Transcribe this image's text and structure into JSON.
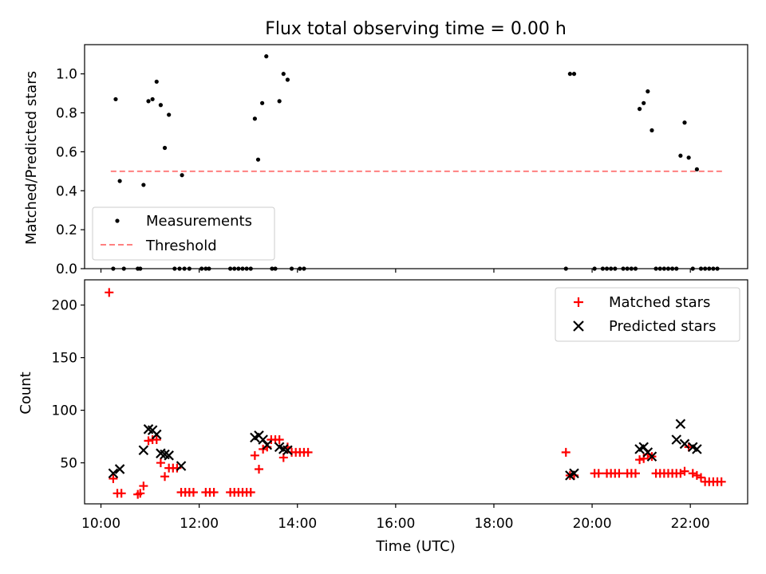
{
  "chart_data": [
    {
      "type": "scatter",
      "title": "Flux total observing time = 0.00 h",
      "xlabel": "",
      "ylabel": "Matched/Predicted stars",
      "xlim": [
        "09:40",
        "23:10"
      ],
      "ylim": [
        0,
        1.15
      ],
      "yticks": [
        "0.0",
        "0.2",
        "0.4",
        "0.6",
        "0.8",
        "1.0"
      ],
      "legend": {
        "position": "lower-left"
      },
      "series": [
        {
          "name": "Measurements",
          "marker": "dot",
          "color": "#000000",
          "points": [
            [
              "10:15",
              0.0
            ],
            [
              "10:18",
              0.87
            ],
            [
              "10:23",
              0.45
            ],
            [
              "10:28",
              0.0
            ],
            [
              "10:45",
              0.0
            ],
            [
              "10:48",
              0.0
            ],
            [
              "10:52",
              0.43
            ],
            [
              "10:58",
              0.86
            ],
            [
              "11:03",
              0.87
            ],
            [
              "11:08",
              0.96
            ],
            [
              "11:13",
              0.84
            ],
            [
              "11:18",
              0.62
            ],
            [
              "11:23",
              0.79
            ],
            [
              "11:30",
              0.0
            ],
            [
              "11:36",
              0.0
            ],
            [
              "11:39",
              0.48
            ],
            [
              "11:42",
              0.0
            ],
            [
              "11:48",
              0.0
            ],
            [
              "12:03",
              0.0
            ],
            [
              "12:08",
              0.0
            ],
            [
              "12:12",
              0.0
            ],
            [
              "12:38",
              0.0
            ],
            [
              "12:43",
              0.0
            ],
            [
              "12:48",
              0.0
            ],
            [
              "12:53",
              0.0
            ],
            [
              "12:58",
              0.0
            ],
            [
              "13:03",
              0.0
            ],
            [
              "13:08",
              0.77
            ],
            [
              "13:12",
              0.56
            ],
            [
              "13:17",
              0.85
            ],
            [
              "13:22",
              1.09
            ],
            [
              "13:29",
              0.0
            ],
            [
              "13:33",
              0.0
            ],
            [
              "13:38",
              0.86
            ],
            [
              "13:43",
              1.0
            ],
            [
              "13:48",
              0.97
            ],
            [
              "13:53",
              0.0
            ],
            [
              "14:03",
              0.0
            ],
            [
              "14:08",
              0.0
            ],
            [
              "19:28",
              0.0
            ],
            [
              "19:33",
              1.0
            ],
            [
              "19:38",
              1.0
            ],
            [
              "20:03",
              0.0
            ],
            [
              "20:13",
              0.0
            ],
            [
              "20:18",
              0.0
            ],
            [
              "20:23",
              0.0
            ],
            [
              "20:28",
              0.0
            ],
            [
              "20:38",
              0.0
            ],
            [
              "20:43",
              0.0
            ],
            [
              "20:48",
              0.0
            ],
            [
              "20:53",
              0.0
            ],
            [
              "20:58",
              0.82
            ],
            [
              "21:03",
              0.85
            ],
            [
              "21:08",
              0.91
            ],
            [
              "21:13",
              0.71
            ],
            [
              "21:18",
              0.0
            ],
            [
              "21:23",
              0.0
            ],
            [
              "21:28",
              0.0
            ],
            [
              "21:33",
              0.0
            ],
            [
              "21:38",
              0.0
            ],
            [
              "21:43",
              0.0
            ],
            [
              "21:48",
              0.58
            ],
            [
              "21:53",
              0.75
            ],
            [
              "21:58",
              0.57
            ],
            [
              "22:03",
              0.0
            ],
            [
              "22:08",
              0.51
            ],
            [
              "22:13",
              0.0
            ],
            [
              "22:18",
              0.0
            ],
            [
              "22:23",
              0.0
            ],
            [
              "22:28",
              0.0
            ],
            [
              "22:33",
              0.0
            ]
          ]
        },
        {
          "name": "Threshold",
          "marker": "dashed-line",
          "color": "#ff8080",
          "points": [
            [
              "10:12",
              0.5
            ],
            [
              "22:40",
              0.5
            ]
          ]
        }
      ]
    },
    {
      "type": "scatter",
      "title": "",
      "xlabel": "Time (UTC)",
      "ylabel": "Count",
      "xlim": [
        "09:40",
        "23:10"
      ],
      "ylim": [
        11,
        224
      ],
      "xticks": [
        "10:00",
        "12:00",
        "14:00",
        "16:00",
        "18:00",
        "20:00",
        "22:00"
      ],
      "yticks": [
        "50",
        "100",
        "150",
        "200"
      ],
      "legend": {
        "position": "upper-right"
      },
      "series": [
        {
          "name": "Matched stars",
          "marker": "plus",
          "color": "#ff0000",
          "points": [
            [
              "10:10",
              212
            ],
            [
              "10:15",
              35
            ],
            [
              "10:20",
              21
            ],
            [
              "10:25",
              21
            ],
            [
              "10:45",
              20
            ],
            [
              "10:48",
              21
            ],
            [
              "10:52",
              28
            ],
            [
              "10:58",
              71
            ],
            [
              "11:03",
              72
            ],
            [
              "11:08",
              72
            ],
            [
              "11:13",
              50
            ],
            [
              "11:18",
              37
            ],
            [
              "11:23",
              45
            ],
            [
              "11:28",
              45
            ],
            [
              "11:33",
              45
            ],
            [
              "11:38",
              22
            ],
            [
              "11:43",
              22
            ],
            [
              "11:48",
              22
            ],
            [
              "11:53",
              22
            ],
            [
              "12:08",
              22
            ],
            [
              "12:13",
              22
            ],
            [
              "12:18",
              22
            ],
            [
              "12:38",
              22
            ],
            [
              "12:43",
              22
            ],
            [
              "12:48",
              22
            ],
            [
              "12:53",
              22
            ],
            [
              "12:58",
              22
            ],
            [
              "13:03",
              22
            ],
            [
              "13:08",
              57
            ],
            [
              "13:13",
              44
            ],
            [
              "13:18",
              63
            ],
            [
              "13:23",
              65
            ],
            [
              "13:28",
              72
            ],
            [
              "13:33",
              72
            ],
            [
              "13:38",
              72
            ],
            [
              "13:43",
              55
            ],
            [
              "13:48",
              65
            ],
            [
              "13:53",
              60
            ],
            [
              "13:58",
              60
            ],
            [
              "14:03",
              60
            ],
            [
              "14:08",
              60
            ],
            [
              "14:13",
              60
            ],
            [
              "19:28",
              60
            ],
            [
              "19:33",
              38
            ],
            [
              "19:38",
              38
            ],
            [
              "20:03",
              40
            ],
            [
              "20:08",
              40
            ],
            [
              "20:18",
              40
            ],
            [
              "20:23",
              40
            ],
            [
              "20:28",
              40
            ],
            [
              "20:33",
              40
            ],
            [
              "20:43",
              40
            ],
            [
              "20:48",
              40
            ],
            [
              "20:53",
              40
            ],
            [
              "20:58",
              53
            ],
            [
              "21:03",
              54
            ],
            [
              "21:08",
              58
            ],
            [
              "21:13",
              56
            ],
            [
              "21:18",
              40
            ],
            [
              "21:23",
              40
            ],
            [
              "21:28",
              40
            ],
            [
              "21:33",
              40
            ],
            [
              "21:38",
              40
            ],
            [
              "21:43",
              40
            ],
            [
              "21:48",
              40
            ],
            [
              "21:53",
              42
            ],
            [
              "21:58",
              65
            ],
            [
              "22:03",
              40
            ],
            [
              "22:08",
              38
            ],
            [
              "22:13",
              36
            ],
            [
              "22:18",
              32
            ],
            [
              "22:23",
              32
            ],
            [
              "22:28",
              32
            ],
            [
              "22:33",
              32
            ],
            [
              "22:38",
              32
            ]
          ]
        },
        {
          "name": "Predicted stars",
          "marker": "x",
          "color": "#000000",
          "points": [
            [
              "10:15",
              40
            ],
            [
              "10:23",
              44
            ],
            [
              "10:52",
              62
            ],
            [
              "10:58",
              82
            ],
            [
              "11:03",
              81
            ],
            [
              "11:08",
              77
            ],
            [
              "11:13",
              59
            ],
            [
              "11:18",
              58
            ],
            [
              "11:23",
              57
            ],
            [
              "11:38",
              47
            ],
            [
              "13:08",
              74
            ],
            [
              "13:13",
              76
            ],
            [
              "13:18",
              72
            ],
            [
              "13:23",
              67
            ],
            [
              "13:38",
              65
            ],
            [
              "13:43",
              63
            ],
            [
              "13:48",
              62
            ],
            [
              "19:33",
              38
            ],
            [
              "19:38",
              40
            ],
            [
              "20:58",
              63
            ],
            [
              "21:03",
              65
            ],
            [
              "21:08",
              60
            ],
            [
              "21:13",
              56
            ],
            [
              "21:43",
              72
            ],
            [
              "21:48",
              87
            ],
            [
              "21:53",
              68
            ],
            [
              "22:03",
              65
            ],
            [
              "22:08",
              63
            ]
          ]
        }
      ]
    }
  ]
}
